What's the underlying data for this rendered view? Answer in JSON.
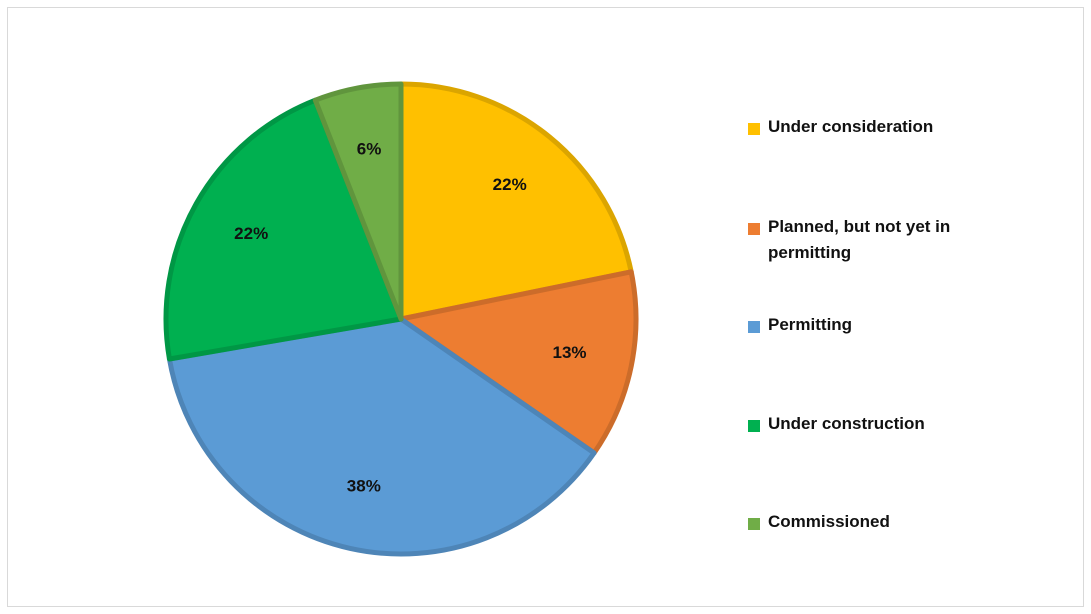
{
  "chart_data": {
    "type": "pie",
    "title": "",
    "slices": [
      {
        "label": "Under consideration",
        "value": 22,
        "display": "22%",
        "color": "#FFC000"
      },
      {
        "label": "Planned, but not yet in permitting",
        "value": 13,
        "display": "13%",
        "color": "#ED7D31"
      },
      {
        "label": "Permitting",
        "value": 38,
        "display": "38%",
        "color": "#5B9BD5"
      },
      {
        "label": "Under construction",
        "value": 22,
        "display": "22%",
        "color": "#00B050"
      },
      {
        "label": "Commissioned",
        "value": 6,
        "display": "6%",
        "color": "#70AD47"
      }
    ],
    "legend_position": "right",
    "start_angle_deg": 0,
    "direction": "clockwise"
  }
}
